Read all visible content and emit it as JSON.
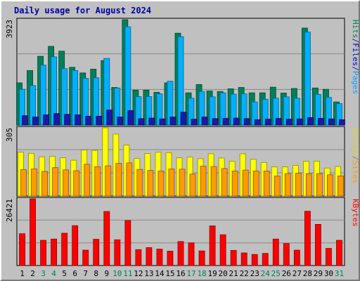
{
  "chart_data": {
    "type": "bar",
    "title": "Daily usage for August 2024",
    "categories": [
      "1",
      "2",
      "3",
      "4",
      "5",
      "6",
      "7",
      "8",
      "9",
      "10",
      "11",
      "12",
      "13",
      "14",
      "15",
      "16",
      "17",
      "18",
      "19",
      "20",
      "21",
      "22",
      "23",
      "24",
      "25",
      "26",
      "27",
      "28",
      "29",
      "30",
      "31"
    ],
    "weekend_days": [
      "3",
      "4",
      "10",
      "11",
      "17",
      "18",
      "24",
      "25",
      "31"
    ],
    "panels": [
      {
        "id": "hits",
        "ymax_label": "3923",
        "ymax": 3923,
        "legend": [
          {
            "text": "Pages",
            "color": "#00a0ff"
          },
          {
            "sep": "/",
            "color": "#1e1e9e"
          },
          {
            "text": "Files",
            "color": "#0000c8"
          },
          {
            "sep": "/",
            "color": "#1e1e9e"
          },
          {
            "text": "Hits",
            "color": "#00805a"
          }
        ],
        "series": [
          {
            "name": "Hits",
            "color": "#00805a",
            "values": [
              1570,
              2030,
              2560,
              2930,
              2750,
              2150,
              1940,
              2080,
              2400,
              1400,
              3923,
              1300,
              1300,
              1220,
              1570,
              3420,
              1200,
              1510,
              1270,
              1250,
              1350,
              1400,
              1200,
              1200,
              1410,
              1190,
              1360,
              3610,
              1380,
              1330,
              860
            ]
          },
          {
            "name": "Files",
            "color": "#00b0ff",
            "values": [
              1330,
              1470,
              2230,
              2540,
              2100,
              2030,
              1740,
              1760,
              2480,
              1380,
              3660,
              1060,
              1060,
              1160,
              1630,
              3290,
              1000,
              1250,
              1050,
              1200,
              1150,
              1160,
              860,
              960,
              1000,
              1050,
              1000,
              3460,
              1140,
              1030,
              800
            ]
          },
          {
            "name": "Pages",
            "color": "#1a1aa8",
            "values": [
              350,
              300,
              380,
              430,
              400,
              380,
              330,
              330,
              560,
              300,
              540,
              240,
              260,
              230,
              300,
              480,
              220,
              300,
              240,
              250,
              260,
              240,
              200,
              220,
              250,
              220,
              230,
              280,
              250,
              230,
              200
            ]
          }
        ]
      },
      {
        "id": "visits",
        "ymax_label": "305",
        "ymax": 305,
        "legend": [
          {
            "text": "Sites",
            "color": "#ff9a00"
          },
          {
            "sep": "/",
            "color": "#b28200"
          },
          {
            "text": "Visits",
            "color": "#e6d800"
          }
        ],
        "series": [
          {
            "name": "Visits",
            "color": "#ffff00",
            "values": [
              196,
              191,
              175,
              178,
              171,
              160,
              206,
              204,
              305,
              277,
              228,
              168,
              190,
              196,
              194,
              171,
              174,
              167,
              189,
              170,
              156,
              189,
              164,
              150,
              130,
              130,
              137,
              155,
              156,
              125,
              132
            ]
          },
          {
            "name": "Sites",
            "color": "#ff9a00",
            "values": [
              118,
              121,
              110,
              127,
              117,
              113,
              142,
              131,
              135,
              146,
              148,
              119,
              115,
              112,
              121,
              120,
              98,
              134,
              132,
              123,
              112,
              116,
              112,
              112,
              89,
              100,
              102,
              100,
              100,
              95,
              90
            ]
          }
        ]
      },
      {
        "id": "kbytes",
        "ymax_label": "26421",
        "ymax": 26421,
        "legend": [
          {
            "text": "KBytes",
            "color": "#ff0000"
          }
        ],
        "series": [
          {
            "name": "KBytes",
            "color": "#ff0000",
            "values": [
              12600,
              26421,
              10000,
              10500,
              12800,
              15800,
              6100,
              10400,
              21400,
              10200,
              17800,
              6300,
              7100,
              6500,
              5700,
              9500,
              9000,
              5800,
              15700,
              12200,
              6000,
              5000,
              4400,
              4800,
              10500,
              8700,
              6100,
              21500,
              16300,
              6800,
              10000
            ]
          }
        ]
      }
    ],
    "grid": true
  }
}
